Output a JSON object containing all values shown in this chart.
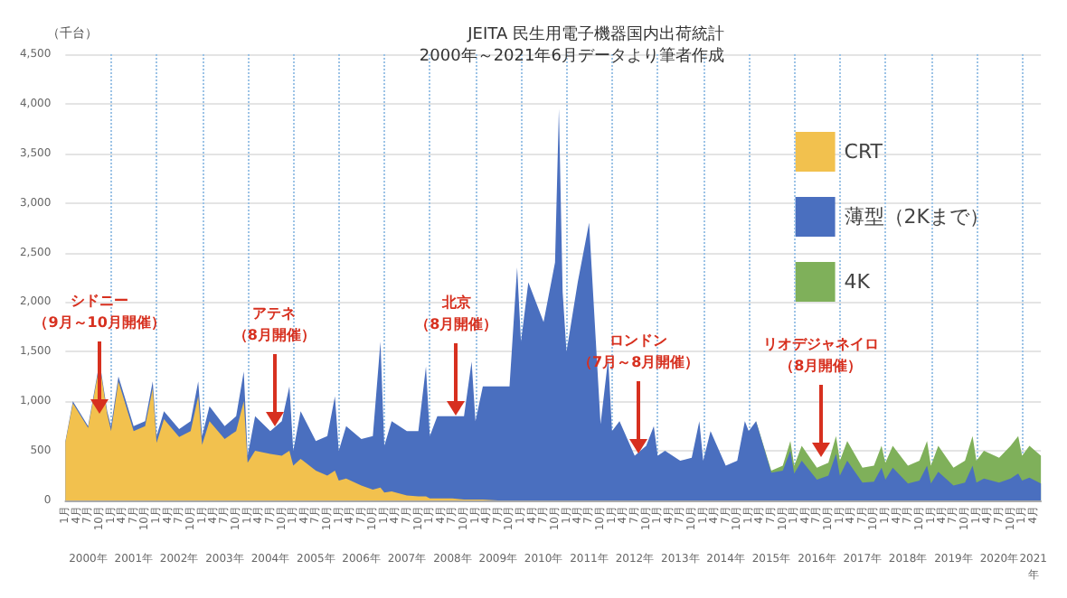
{
  "chart_data": {
    "type": "area",
    "stacked": true,
    "title": "JEITA 民生用電子機器国内出荷統計",
    "subtitle": "2000年～2021年6月データより筆者作成",
    "ylabel": "（千台）",
    "x": [
      "2000-01",
      "2000-03",
      "2000-07",
      "2000-10",
      "2000-12",
      "2001-01",
      "2001-03",
      "2001-07",
      "2001-10",
      "2001-12",
      "2002-01",
      "2002-03",
      "2002-07",
      "2002-10",
      "2002-12",
      "2003-01",
      "2003-03",
      "2003-07",
      "2003-10",
      "2003-12",
      "2004-01",
      "2004-03",
      "2004-07",
      "2004-10",
      "2004-12",
      "2005-01",
      "2005-03",
      "2005-07",
      "2005-10",
      "2005-12",
      "2006-01",
      "2006-03",
      "2006-07",
      "2006-10",
      "2006-12",
      "2007-01",
      "2007-03",
      "2007-07",
      "2007-10",
      "2007-12",
      "2008-01",
      "2008-03",
      "2008-07",
      "2008-10",
      "2008-12",
      "2009-01",
      "2009-03",
      "2009-07",
      "2009-10",
      "2009-12",
      "2010-01",
      "2010-03",
      "2010-07",
      "2010-10",
      "2010-11",
      "2010-12",
      "2011-01",
      "2011-04",
      "2011-07",
      "2011-10",
      "2011-12",
      "2012-01",
      "2012-03",
      "2012-07",
      "2012-10",
      "2012-12",
      "2013-01",
      "2013-03",
      "2013-07",
      "2013-10",
      "2013-12",
      "2014-01",
      "2014-03",
      "2014-07",
      "2014-10",
      "2014-12",
      "2015-01",
      "2015-03",
      "2015-07",
      "2015-10",
      "2015-12",
      "2016-01",
      "2016-03",
      "2016-07",
      "2016-10",
      "2016-12",
      "2017-01",
      "2017-03",
      "2017-07",
      "2017-10",
      "2017-12",
      "2018-01",
      "2018-03",
      "2018-07",
      "2018-10",
      "2018-12",
      "2019-01",
      "2019-03",
      "2019-07",
      "2019-10",
      "2019-12",
      "2020-01",
      "2020-03",
      "2020-07",
      "2020-10",
      "2020-12",
      "2021-01",
      "2021-03",
      "2021-06"
    ],
    "series": [
      {
        "name": "CRT",
        "color": "#f2c14e",
        "values": [
          590,
          980,
          730,
          1370,
          870,
          700,
          1200,
          700,
          750,
          1130,
          580,
          820,
          640,
          700,
          1050,
          560,
          800,
          620,
          700,
          1000,
          380,
          500,
          470,
          450,
          500,
          350,
          420,
          300,
          250,
          300,
          200,
          220,
          150,
          110,
          130,
          80,
          90,
          50,
          40,
          40,
          20,
          20,
          20,
          10,
          10,
          10,
          10,
          0,
          0,
          0,
          0,
          0,
          0,
          0,
          0,
          0,
          0,
          0,
          0,
          0,
          0,
          0,
          0,
          0,
          0,
          0,
          0,
          0,
          0,
          0,
          0,
          0,
          0,
          0,
          0,
          0,
          0,
          0,
          0,
          0,
          0,
          0,
          0,
          0,
          0,
          0,
          0,
          0,
          0,
          0,
          0,
          0,
          0,
          0,
          0,
          0,
          0,
          0,
          0,
          0,
          0,
          0,
          0,
          0,
          0,
          0,
          0,
          0,
          0
        ]
      },
      {
        "name": "薄型（2Kまで）",
        "color": "#4a6fbf",
        "values": [
          10,
          20,
          20,
          30,
          30,
          50,
          50,
          50,
          50,
          70,
          70,
          80,
          80,
          100,
          150,
          90,
          150,
          130,
          150,
          300,
          70,
          350,
          230,
          350,
          650,
          150,
          480,
          300,
          400,
          750,
          300,
          530,
          470,
          540,
          1470,
          470,
          710,
          650,
          660,
          1310,
          630,
          830,
          830,
          840,
          1390,
          790,
          1140,
          1150,
          1150,
          2350,
          1600,
          2200,
          1800,
          2400,
          3950,
          2100,
          1500,
          2200,
          2800,
          770,
          1430,
          700,
          800,
          450,
          550,
          750,
          450,
          500,
          400,
          430,
          800,
          400,
          700,
          350,
          400,
          800,
          700,
          800,
          280,
          300,
          500,
          270,
          400,
          210,
          250,
          470,
          250,
          400,
          180,
          190,
          330,
          210,
          330,
          170,
          200,
          350,
          170,
          290,
          150,
          180,
          350,
          180,
          220,
          180,
          220,
          270,
          200,
          230,
          170
        ]
      },
      {
        "name": "4K",
        "color": "#7fb05a",
        "values": [
          null,
          null,
          null,
          null,
          null,
          null,
          null,
          null,
          null,
          null,
          null,
          null,
          null,
          null,
          null,
          null,
          null,
          null,
          null,
          null,
          null,
          null,
          null,
          null,
          null,
          null,
          null,
          null,
          null,
          null,
          null,
          null,
          null,
          null,
          null,
          null,
          null,
          null,
          null,
          null,
          null,
          null,
          null,
          null,
          null,
          null,
          null,
          null,
          null,
          null,
          null,
          null,
          null,
          null,
          null,
          null,
          null,
          null,
          null,
          null,
          null,
          null,
          null,
          null,
          null,
          null,
          null,
          null,
          null,
          null,
          null,
          null,
          null,
          null,
          null,
          null,
          null,
          0,
          20,
          50,
          100,
          80,
          150,
          120,
          130,
          180,
          150,
          200,
          150,
          160,
          220,
          170,
          220,
          180,
          200,
          250,
          180,
          260,
          180,
          220,
          300,
          220,
          280,
          250,
          330,
          380,
          250,
          320,
          280
        ]
      }
    ],
    "xlim": [
      "2000-01",
      "2021-06"
    ],
    "xticks": [
      {
        "value": "2000-01",
        "label": "1月"
      },
      {
        "value": "2000-04",
        "label": "4月"
      },
      {
        "value": "2000-07",
        "label": "7月"
      },
      {
        "value": "2000-10",
        "label": "10月"
      },
      {
        "value": "2001-01",
        "label": "1月"
      },
      {
        "value": "2001-04",
        "label": "4月"
      },
      {
        "value": "2001-07",
        "label": "7月"
      },
      {
        "value": "2001-10",
        "label": "10月"
      },
      {
        "value": "2002-01",
        "label": "1月"
      },
      {
        "value": "2002-04",
        "label": "4月"
      },
      {
        "value": "2002-07",
        "label": "7月"
      },
      {
        "value": "2002-10",
        "label": "10月"
      },
      {
        "value": "2003-01",
        "label": "1月"
      },
      {
        "value": "2003-04",
        "label": "4月"
      },
      {
        "value": "2003-07",
        "label": "7月"
      },
      {
        "value": "2003-10",
        "label": "10月"
      },
      {
        "value": "2004-01",
        "label": "1月"
      },
      {
        "value": "2004-04",
        "label": "4月"
      },
      {
        "value": "2004-07",
        "label": "7月"
      },
      {
        "value": "2004-10",
        "label": "10月"
      },
      {
        "value": "2005-01",
        "label": "1月"
      },
      {
        "value": "2005-04",
        "label": "4月"
      },
      {
        "value": "2005-07",
        "label": "7月"
      },
      {
        "value": "2005-10",
        "label": "10月"
      },
      {
        "value": "2006-01",
        "label": "1月"
      },
      {
        "value": "2006-04",
        "label": "4月"
      },
      {
        "value": "2006-07",
        "label": "7月"
      },
      {
        "value": "2006-10",
        "label": "10月"
      },
      {
        "value": "2007-01",
        "label": "1月"
      },
      {
        "value": "2007-04",
        "label": "4月"
      },
      {
        "value": "2007-07",
        "label": "7月"
      },
      {
        "value": "2007-10",
        "label": "10月"
      },
      {
        "value": "2008-01",
        "label": "1月"
      },
      {
        "value": "2008-04",
        "label": "4月"
      },
      {
        "value": "2008-07",
        "label": "7月"
      },
      {
        "value": "2008-10",
        "label": "10月"
      },
      {
        "value": "2009-01",
        "label": "1月"
      },
      {
        "value": "2009-04",
        "label": "4月"
      },
      {
        "value": "2009-07",
        "label": "7月"
      },
      {
        "value": "2009-10",
        "label": "10月"
      },
      {
        "value": "2010-01",
        "label": "1月"
      },
      {
        "value": "2010-04",
        "label": "4月"
      },
      {
        "value": "2010-07",
        "label": "7月"
      },
      {
        "value": "2010-10",
        "label": "10月"
      },
      {
        "value": "2011-01",
        "label": "1月"
      },
      {
        "value": "2011-04",
        "label": "4月"
      },
      {
        "value": "2011-07",
        "label": "7月"
      },
      {
        "value": "2011-10",
        "label": "10月"
      },
      {
        "value": "2012-01",
        "label": "1月"
      },
      {
        "value": "2012-04",
        "label": "4月"
      },
      {
        "value": "2012-07",
        "label": "7月"
      },
      {
        "value": "2012-10",
        "label": "10月"
      },
      {
        "value": "2013-01",
        "label": "1月"
      },
      {
        "value": "2013-04",
        "label": "4月"
      },
      {
        "value": "2013-07",
        "label": "7月"
      },
      {
        "value": "2013-10",
        "label": "10月"
      },
      {
        "value": "2014-01",
        "label": "1月"
      },
      {
        "value": "2014-04",
        "label": "4月"
      },
      {
        "value": "2014-07",
        "label": "7月"
      },
      {
        "value": "2014-10",
        "label": "10月"
      },
      {
        "value": "2015-01",
        "label": "1月"
      },
      {
        "value": "2015-04",
        "label": "4月"
      },
      {
        "value": "2015-07",
        "label": "7月"
      },
      {
        "value": "2015-10",
        "label": "10月"
      },
      {
        "value": "2016-01",
        "label": "1月"
      },
      {
        "value": "2016-04",
        "label": "4月"
      },
      {
        "value": "2016-07",
        "label": "7月"
      },
      {
        "value": "2016-10",
        "label": "10月"
      },
      {
        "value": "2017-01",
        "label": "1月"
      },
      {
        "value": "2017-04",
        "label": "4月"
      },
      {
        "value": "2017-07",
        "label": "7月"
      },
      {
        "value": "2017-10",
        "label": "10月"
      },
      {
        "value": "2018-01",
        "label": "1月"
      },
      {
        "value": "2018-04",
        "label": "4月"
      },
      {
        "value": "2018-07",
        "label": "7月"
      },
      {
        "value": "2018-10",
        "label": "10月"
      },
      {
        "value": "2019-01",
        "label": "1月"
      },
      {
        "value": "2019-04",
        "label": "4月"
      },
      {
        "value": "2019-07",
        "label": "7月"
      },
      {
        "value": "2019-10",
        "label": "10月"
      },
      {
        "value": "2020-01",
        "label": "1月"
      },
      {
        "value": "2020-04",
        "label": "4月"
      },
      {
        "value": "2020-07",
        "label": "7月"
      },
      {
        "value": "2020-10",
        "label": "10月"
      },
      {
        "value": "2021-01",
        "label": "1月"
      },
      {
        "value": "2021-04",
        "label": "4月"
      }
    ],
    "x2lim": [
      "2000-01",
      "2021-06"
    ],
    "x2ticks": [
      {
        "value": "2000-07",
        "label": "2000年"
      },
      {
        "value": "2001-07",
        "label": "2001年"
      },
      {
        "value": "2002-07",
        "label": "2002年"
      },
      {
        "value": "2003-07",
        "label": "2003年"
      },
      {
        "value": "2004-07",
        "label": "2004年"
      },
      {
        "value": "2005-07",
        "label": "2005年"
      },
      {
        "value": "2006-07",
        "label": "2006年"
      },
      {
        "value": "2007-07",
        "label": "2007年"
      },
      {
        "value": "2008-07",
        "label": "2008年"
      },
      {
        "value": "2009-07",
        "label": "2009年"
      },
      {
        "value": "2010-07",
        "label": "2010年"
      },
      {
        "value": "2011-07",
        "label": "2011年"
      },
      {
        "value": "2012-07",
        "label": "2012年"
      },
      {
        "value": "2013-07",
        "label": "2013年"
      },
      {
        "value": "2014-07",
        "label": "2014年"
      },
      {
        "value": "2015-07",
        "label": "2015年"
      },
      {
        "value": "2016-07",
        "label": "2016年"
      },
      {
        "value": "2017-07",
        "label": "2017年"
      },
      {
        "value": "2018-07",
        "label": "2018年"
      },
      {
        "value": "2019-07",
        "label": "2019年"
      },
      {
        "value": "2020-07",
        "label": "2020年"
      },
      {
        "value": "2021-04",
        "label": "2021\n年"
      }
    ],
    "ylim": [
      0,
      4500
    ],
    "yticks": [
      0,
      500,
      {
        "value": 1000,
        "label": "1,000"
      },
      {
        "value": 1500,
        "label": "1,500"
      },
      {
        "value": 2000,
        "label": "2,000"
      },
      {
        "value": 2500,
        "label": "2,500"
      },
      {
        "value": 3000,
        "label": "3,000"
      },
      {
        "value": 3500,
        "label": "3,500"
      },
      {
        "value": 4000,
        "label": "4,000"
      },
      {
        "value": 4500,
        "label": "4,500"
      }
    ],
    "grid": "y",
    "legend": "top right",
    "ref_lines": [
      {
        "axis": "x",
        "value": "2001-01",
        "line_style": "dotted",
        "color": "#9cc3e6"
      },
      {
        "axis": "x",
        "value": "2002-01",
        "line_style": "dotted",
        "color": "#9cc3e6"
      },
      {
        "axis": "x",
        "value": "2003-01",
        "line_style": "dotted",
        "color": "#9cc3e6"
      },
      {
        "axis": "x",
        "value": "2004-01",
        "line_style": "dotted",
        "color": "#9cc3e6"
      },
      {
        "axis": "x",
        "value": "2005-01",
        "line_style": "dotted",
        "color": "#9cc3e6"
      },
      {
        "axis": "x",
        "value": "2006-01",
        "line_style": "dotted",
        "color": "#9cc3e6"
      },
      {
        "axis": "x",
        "value": "2007-01",
        "line_style": "dotted",
        "color": "#9cc3e6"
      },
      {
        "axis": "x",
        "value": "2008-01",
        "line_style": "dotted",
        "color": "#9cc3e6"
      },
      {
        "axis": "x",
        "value": "2009-01",
        "line_style": "dotted",
        "color": "#9cc3e6"
      },
      {
        "axis": "x",
        "value": "2010-01",
        "line_style": "dotted",
        "color": "#9cc3e6"
      },
      {
        "axis": "x",
        "value": "2011-01",
        "line_style": "dotted",
        "color": "#9cc3e6"
      },
      {
        "axis": "x",
        "value": "2012-01",
        "line_style": "dotted",
        "color": "#9cc3e6"
      },
      {
        "axis": "x",
        "value": "2013-01",
        "line_style": "dotted",
        "color": "#9cc3e6"
      },
      {
        "axis": "x",
        "value": "2014-01",
        "line_style": "dotted",
        "color": "#9cc3e6"
      },
      {
        "axis": "x",
        "value": "2015-01",
        "line_style": "dotted",
        "color": "#9cc3e6"
      },
      {
        "axis": "x",
        "value": "2016-01",
        "line_style": "dotted",
        "color": "#9cc3e6"
      },
      {
        "axis": "x",
        "value": "2017-01",
        "line_style": "dotted",
        "color": "#9cc3e6"
      },
      {
        "axis": "x",
        "value": "2018-01",
        "line_style": "dotted",
        "color": "#9cc3e6"
      },
      {
        "axis": "x",
        "value": "2019-01",
        "line_style": "dotted",
        "color": "#9cc3e6"
      },
      {
        "axis": "x",
        "value": "2020-01",
        "line_style": "dotted",
        "color": "#9cc3e6"
      },
      {
        "axis": "x",
        "value": "2021-01",
        "line_style": "dotted",
        "color": "#9cc3e6"
      }
    ],
    "annotations": [
      {
        "text": "シドニー（9月～10月開催）",
        "x": "2000-10",
        "y": 880
      },
      {
        "text": "アテネ（8月開催）",
        "x": "2004-08",
        "y": 740
      },
      {
        "text": "北京（8月開催）",
        "x": "2008-08",
        "y": 850
      },
      {
        "text": "ロンドン（7月～8月開催）",
        "x": "2012-08",
        "y": 480
      },
      {
        "text": "リオデジャネイロ（8月開催）",
        "x": "2016-08",
        "y": 430
      }
    ]
  }
}
